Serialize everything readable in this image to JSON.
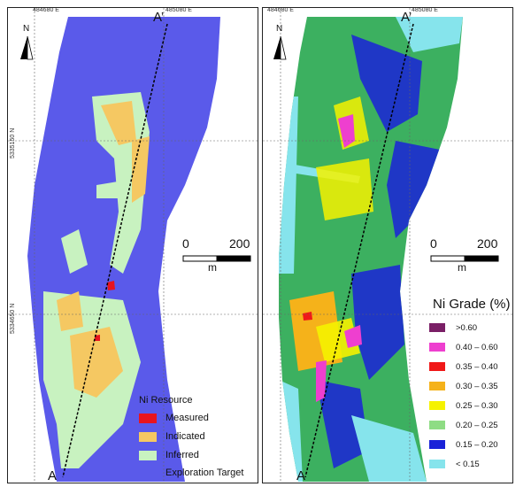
{
  "coords": {
    "easting_west": "484680 E",
    "easting_east": "485080 E",
    "northing_upper": "5335150 N",
    "northing_lower": "5334650 N"
  },
  "section": {
    "start": "A",
    "end": "A’"
  },
  "north_label": "N",
  "scale": {
    "zero": "0",
    "max": "200",
    "unit": "m"
  },
  "left_legend": {
    "title": "Ni Resource",
    "items": [
      {
        "label": "Measured",
        "color": "#e8141e"
      },
      {
        "label": "Indicated",
        "color": "#f5c862"
      },
      {
        "label": "Inferred",
        "color": "#c8f2c0"
      },
      {
        "label": "Exploration Target",
        "color": "#5a5aea"
      }
    ]
  },
  "right_legend": {
    "title": "Ni Grade (%)",
    "items": [
      {
        "label": ">0.60",
        "color": "#7a1f66"
      },
      {
        "label": "0.40 – 0.60",
        "color": "#ee3fcf"
      },
      {
        "label": "0.35 – 0.40",
        "color": "#f01818"
      },
      {
        "label": "0.30 – 0.35",
        "color": "#f5b21a"
      },
      {
        "label": "0.25 – 0.30",
        "color": "#f5f200"
      },
      {
        "label": "0.20 – 0.25",
        "color": "#8edc84"
      },
      {
        "label": "0.15 – 0.20",
        "color": "#1a22d8"
      },
      {
        "label": "< 0.15",
        "color": "#86e4ec"
      }
    ]
  },
  "colors": {
    "base_left": "#5a5aea",
    "base_right": "#3cb060"
  }
}
